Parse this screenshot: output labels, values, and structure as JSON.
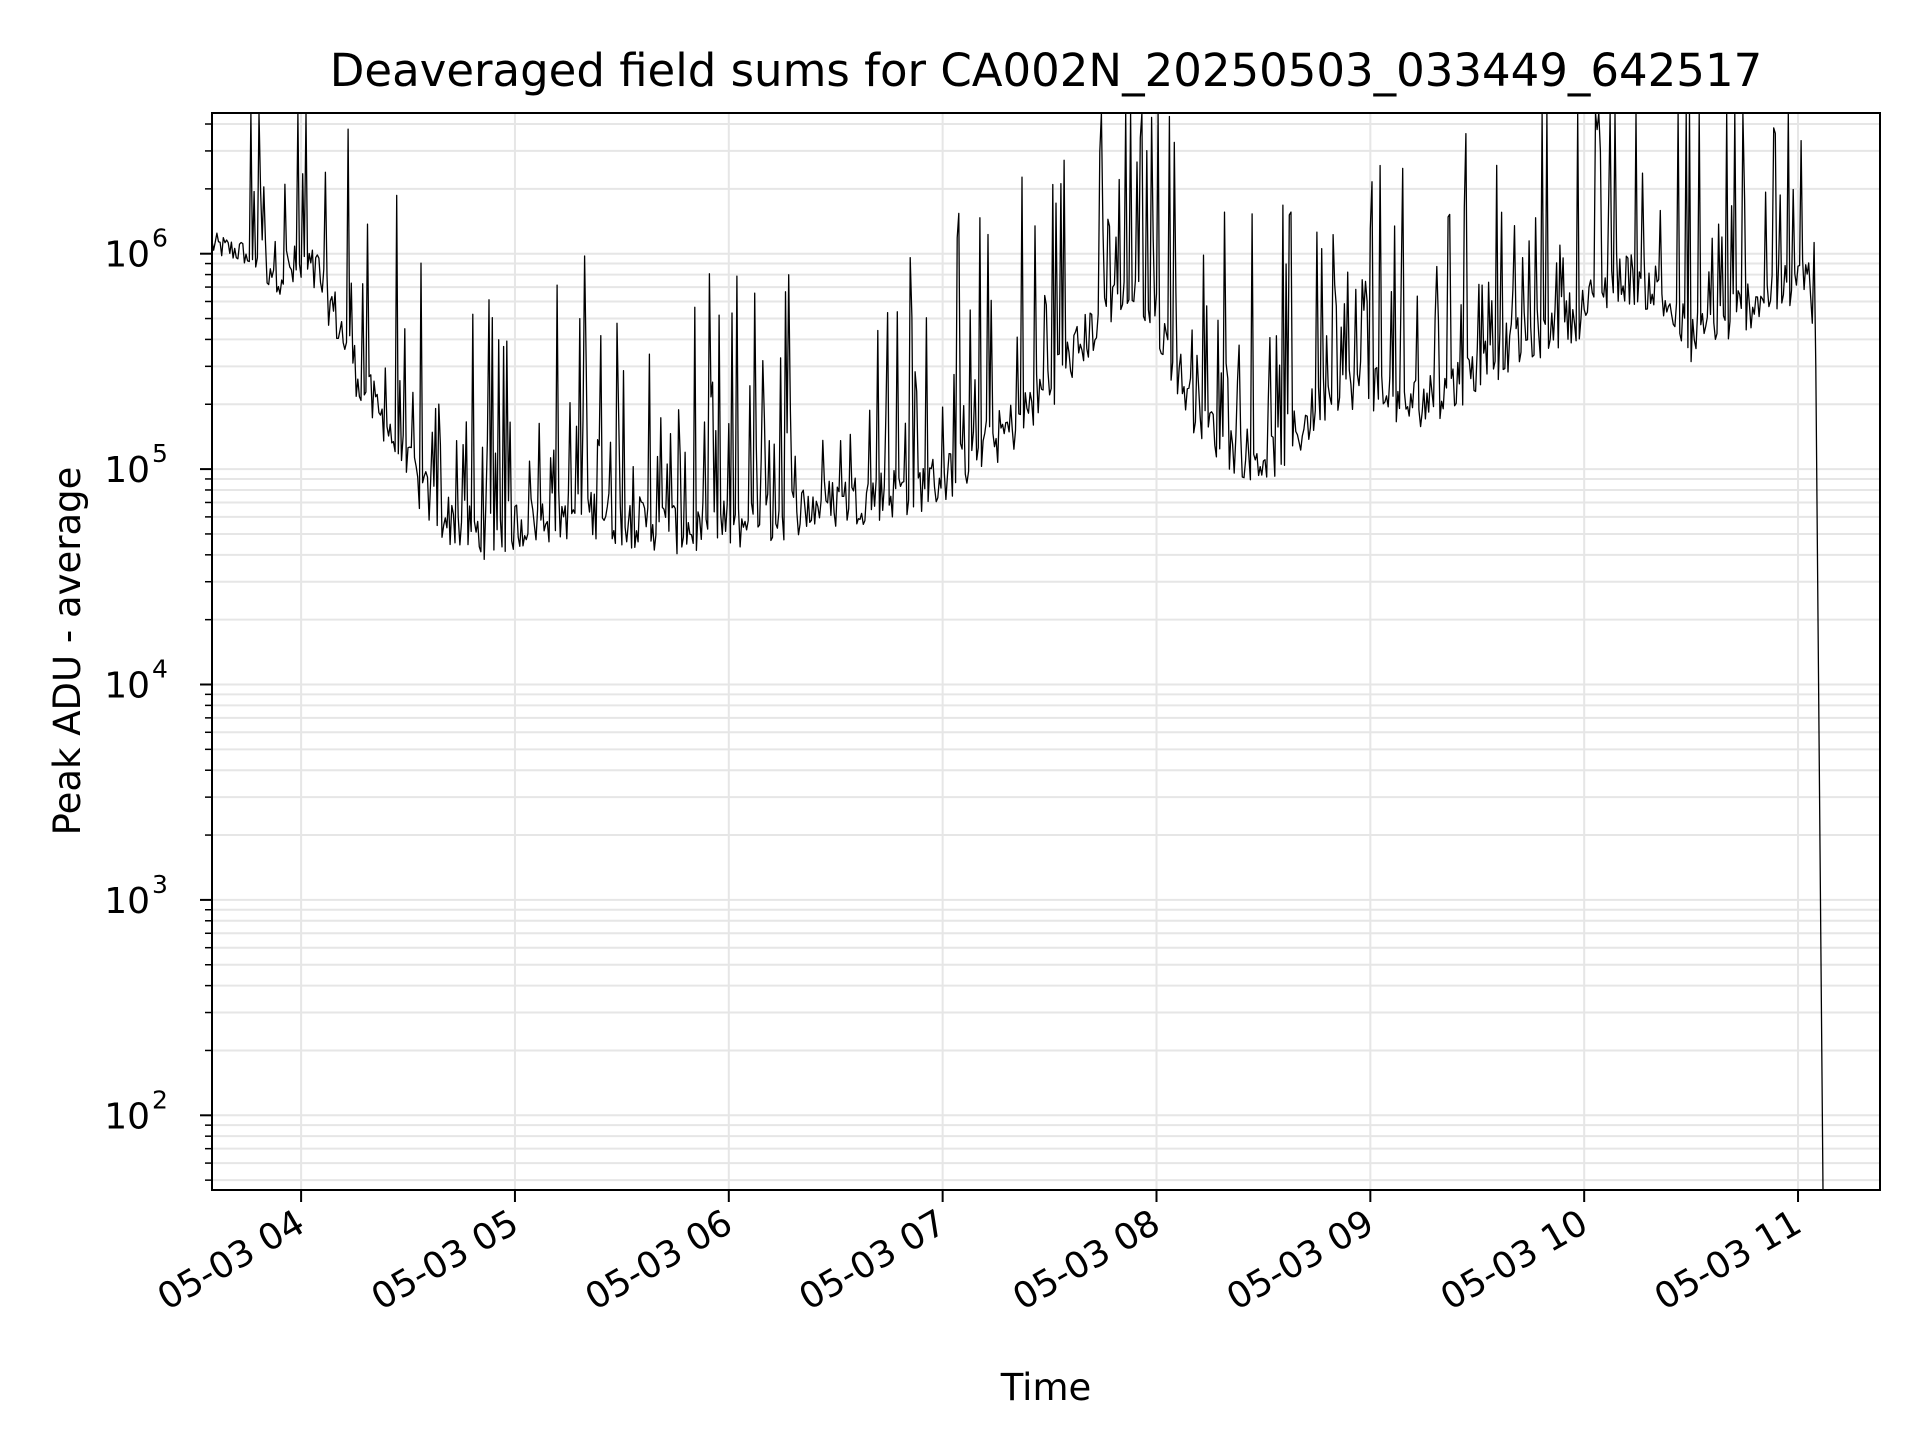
{
  "chart_data": {
    "type": "line",
    "title": "Deaveraged field sums for CA002N_20250503_033449_642517",
    "xlabel": "Time",
    "ylabel": "Peak ADU - average",
    "yscale": "log",
    "xlim": [
      "2025-05-03 03:35",
      "2025-05-03 11:23"
    ],
    "ylim": [
      45,
      4500000
    ],
    "grid": true,
    "line_color": "#000000",
    "grid_color": "#e6e6e6",
    "x_ticks": [
      {
        "label": "05-03 04",
        "value": "2025-05-03 04:00"
      },
      {
        "label": "05-03 05",
        "value": "2025-05-03 05:00"
      },
      {
        "label": "05-03 06",
        "value": "2025-05-03 06:00"
      },
      {
        "label": "05-03 07",
        "value": "2025-05-03 07:00"
      },
      {
        "label": "05-03 08",
        "value": "2025-05-03 08:00"
      },
      {
        "label": "05-03 09",
        "value": "2025-05-03 09:00"
      },
      {
        "label": "05-03 10",
        "value": "2025-05-03 10:00"
      },
      {
        "label": "05-03 11",
        "value": "2025-05-03 11:00"
      }
    ],
    "y_ticks": [
      {
        "base": "10",
        "exp": "2",
        "value": 100
      },
      {
        "base": "10",
        "exp": "3",
        "value": 1000
      },
      {
        "base": "10",
        "exp": "4",
        "value": 10000
      },
      {
        "base": "10",
        "exp": "5",
        "value": 100000
      },
      {
        "base": "10",
        "exp": "6",
        "value": 1000000
      }
    ],
    "series": [
      {
        "x": [
          "2025-05-03 03:35",
          "2025-05-03 03:45",
          "2025-05-03 03:55",
          "2025-05-03 04:05",
          "2025-05-03 04:10",
          "2025-05-03 04:15",
          "2025-05-03 04:20",
          "2025-05-03 04:25",
          "2025-05-03 04:30",
          "2025-05-03 04:35",
          "2025-05-03 04:40",
          "2025-05-03 04:45",
          "2025-05-03 04:50",
          "2025-05-03 05:00",
          "2025-05-03 05:10",
          "2025-05-03 05:20",
          "2025-05-03 05:30",
          "2025-05-03 05:40",
          "2025-05-03 05:50",
          "2025-05-03 06:00",
          "2025-05-03 06:10",
          "2025-05-03 06:20",
          "2025-05-03 06:30",
          "2025-05-03 06:40",
          "2025-05-03 06:50",
          "2025-05-03 07:00",
          "2025-05-03 07:10",
          "2025-05-03 07:20",
          "2025-05-03 07:30",
          "2025-05-03 07:40",
          "2025-05-03 07:50",
          "2025-05-03 08:00",
          "2025-05-03 08:10",
          "2025-05-03 08:20",
          "2025-05-03 08:30",
          "2025-05-03 08:40",
          "2025-05-03 08:50",
          "2025-05-03 09:00",
          "2025-05-03 09:10",
          "2025-05-03 09:20",
          "2025-05-03 09:30",
          "2025-05-03 09:40",
          "2025-05-03 09:50",
          "2025-05-03 10:00",
          "2025-05-03 10:10",
          "2025-05-03 10:20",
          "2025-05-03 10:30",
          "2025-05-03 10:40",
          "2025-05-03 10:50",
          "2025-05-03 11:00",
          "2025-05-03 11:03",
          "2025-05-03 11:05",
          "2025-05-03 11:07"
        ],
        "y": [
          1100000,
          1000000,
          850000,
          800000,
          500000,
          300000,
          200000,
          150000,
          100000,
          75000,
          60000,
          55000,
          50000,
          55000,
          60000,
          65000,
          58000,
          55000,
          52000,
          55000,
          58000,
          65000,
          70000,
          75000,
          80000,
          90000,
          120000,
          160000,
          250000,
          400000,
          700000,
          500000,
          200000,
          130000,
          110000,
          150000,
          250000,
          250000,
          200000,
          220000,
          300000,
          380000,
          450000,
          550000,
          800000,
          700000,
          400000,
          500000,
          650000,
          700000,
          850000,
          300000,
          45
        ]
      }
    ]
  }
}
